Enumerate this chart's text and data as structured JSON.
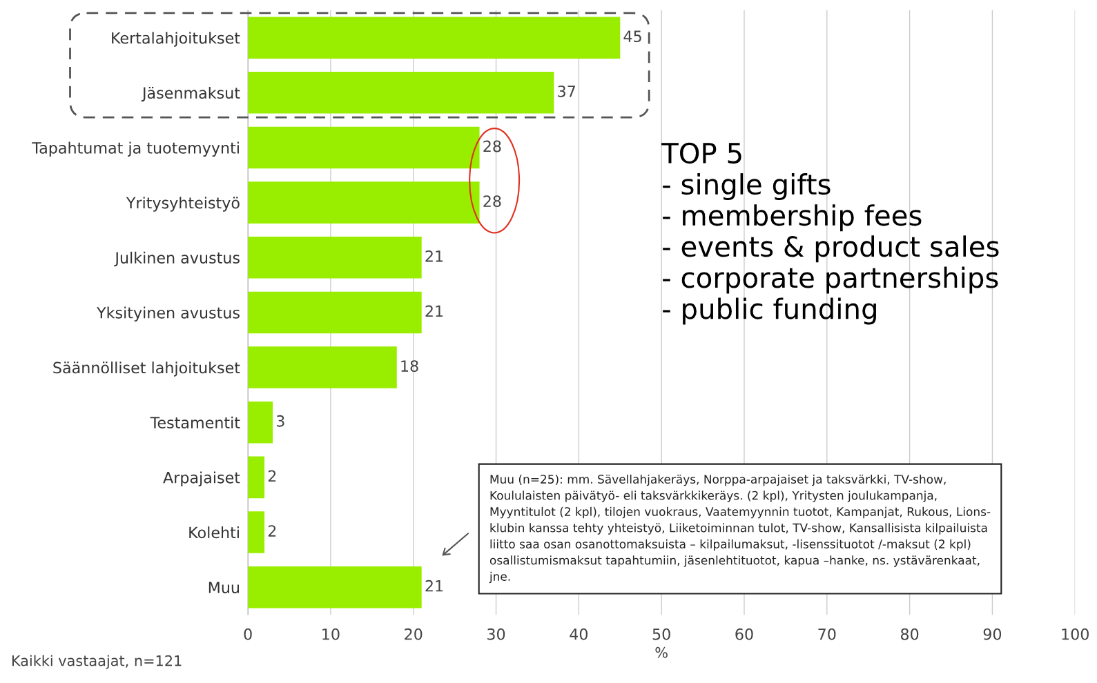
{
  "chart_data": {
    "type": "bar",
    "orientation": "horizontal",
    "categories": [
      "Kertalahjoitukset",
      "Jäsenmaksut",
      "Tapahtumat ja tuotemyynti",
      "Yritysyhteistyö",
      "Julkinen avustus",
      "Yksityinen avustus",
      "Säännölliset lahjoitukset",
      "Testamentit",
      "Arpajaiset",
      "Kolehti",
      "Muu"
    ],
    "values": [
      45,
      37,
      28,
      28,
      21,
      21,
      18,
      3,
      2,
      2,
      21
    ],
    "color": "#99ee00",
    "xlim": [
      0,
      100
    ],
    "xticks": [
      0,
      10,
      20,
      30,
      40,
      50,
      60,
      70,
      80,
      90,
      100
    ],
    "xlabel": "%",
    "grid": "x",
    "data_labels": true,
    "annotations": [
      "TOP 5\n- single gifts\n- membership fees\n- events & product sales\n- corporate partnerships\n- public funding",
      "Muu (n=25): mm. Sävellahjakeräys, Norppa-arpajaiset ja taksvärkki, TV-show,\nKoululaisten päivätyö- eli taksvärkkikeräys. (2 kpl), Yritysten joulukampanja,\nMyyntitulot (2 kpl), tilojen vuokraus, Vaatemyynnin tuotot, Kampanjat, Rukous, Lions-\nklubin kanssa tehty yhteistyö, Liiketoiminnan tulot, TV-show, Kansallisista kilpailuista\nliitto saa osan osanottomaksuista – kilpailumaksut, -lisenssituotot /-maksut (2 kpl)\nosallistumismaksut tapahtumiin, jäsenlehtituotot, kapua –hanke, ns. ystävärenkaat,\njne.",
      "Kaikki vastaajat, n=121"
    ]
  }
}
